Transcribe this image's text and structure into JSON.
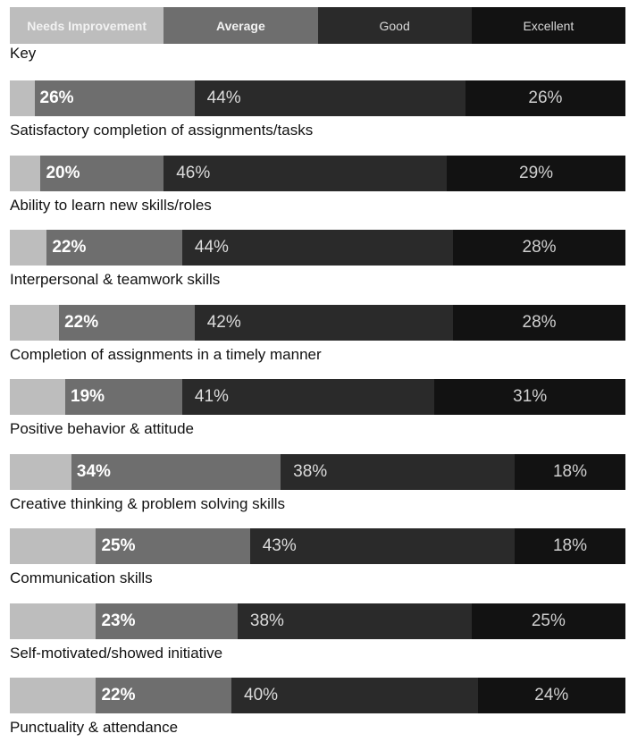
{
  "legend": {
    "title": "Key",
    "items": [
      "Needs Improvement",
      "Average",
      "Good",
      "Excellent"
    ]
  },
  "colors": {
    "Needs Improvement": "#bdbdbd",
    "Average": "#6e6e6e",
    "Good": "#2a2a2a",
    "Excellent": "#121212"
  },
  "chart_data": {
    "type": "bar",
    "orientation": "horizontal",
    "stacked": true,
    "legend_placement": "top",
    "categories": [
      "Satisfactory completion of assignments/tasks",
      "Ability to learn new skills/roles",
      "Interpersonal & teamwork skills",
      "Completion of assignments in a timely manner",
      "Positive behavior & attitude",
      "Creative thinking & problem solving skills",
      "Communication skills",
      "Self-motivated/showed initiative",
      "Punctuality & attendance"
    ],
    "series": [
      {
        "name": "Needs Improvement",
        "values": [
          4,
          5,
          6,
          8,
          9,
          10,
          14,
          14,
          14
        ]
      },
      {
        "name": "Average",
        "values": [
          26,
          20,
          22,
          22,
          19,
          34,
          25,
          23,
          22
        ]
      },
      {
        "name": "Good",
        "values": [
          44,
          46,
          44,
          42,
          41,
          38,
          43,
          38,
          40
        ]
      },
      {
        "name": "Excellent",
        "values": [
          26,
          29,
          28,
          28,
          31,
          18,
          18,
          25,
          24
        ]
      }
    ],
    "labels": [
      [
        "",
        "26%",
        "44%",
        "26%"
      ],
      [
        "",
        "20%",
        "46%",
        "29%"
      ],
      [
        "",
        "22%",
        "44%",
        "28%"
      ],
      [
        "",
        "22%",
        "42%",
        "28%"
      ],
      [
        "",
        "19%",
        "41%",
        "31%"
      ],
      [
        "",
        "34%",
        "38%",
        "18%"
      ],
      [
        "",
        "25%",
        "43%",
        "18%"
      ],
      [
        "",
        "23%",
        "38%",
        "25%"
      ],
      [
        "",
        "22%",
        "40%",
        "24%"
      ]
    ]
  }
}
